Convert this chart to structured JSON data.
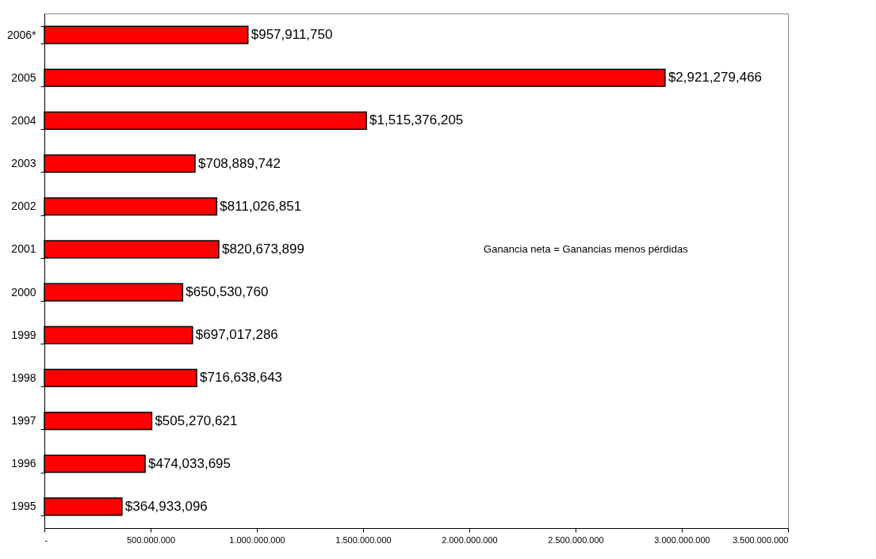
{
  "chart_data": {
    "type": "bar",
    "orientation": "horizontal",
    "categories": [
      "2006*",
      "2005",
      "2004",
      "2003",
      "2002",
      "2001",
      "2000",
      "1999",
      "1998",
      "1997",
      "1996",
      "1995"
    ],
    "values": [
      957911750,
      2921279466,
      1515376205,
      708889742,
      811026851,
      820673899,
      650530760,
      697017286,
      716638643,
      505270621,
      474033695,
      364933096
    ],
    "value_labels": [
      "$957,911,750",
      "$2,921,279,466",
      "$1,515,376,205",
      "$708,889,742",
      "$811,026,851",
      "$820,673,899",
      "$650,530,760",
      "$697,017,286",
      "$716,638,643",
      "$505,270,621",
      "$474,033,695",
      "$364,933,096"
    ],
    "color": "#ff0000",
    "xlim": [
      0,
      3500000000
    ],
    "xticks": [
      {
        "value": 0,
        "label": "-"
      },
      {
        "value": 500000000,
        "label": "500.000.000"
      },
      {
        "value": 1000000000,
        "label": "1.000.000.000"
      },
      {
        "value": 1500000000,
        "label": "1.500.000.000"
      },
      {
        "value": 2000000000,
        "label": "2.000.000.000"
      },
      {
        "value": 2500000000,
        "label": "2.500.000.000"
      },
      {
        "value": 3000000000,
        "label": "3.000.000.000"
      },
      {
        "value": 3500000000,
        "label": "3.500.000.000"
      }
    ],
    "annotations": [
      "Ganancia neta = Ganancias menos pérdidas"
    ],
    "grid": false
  }
}
